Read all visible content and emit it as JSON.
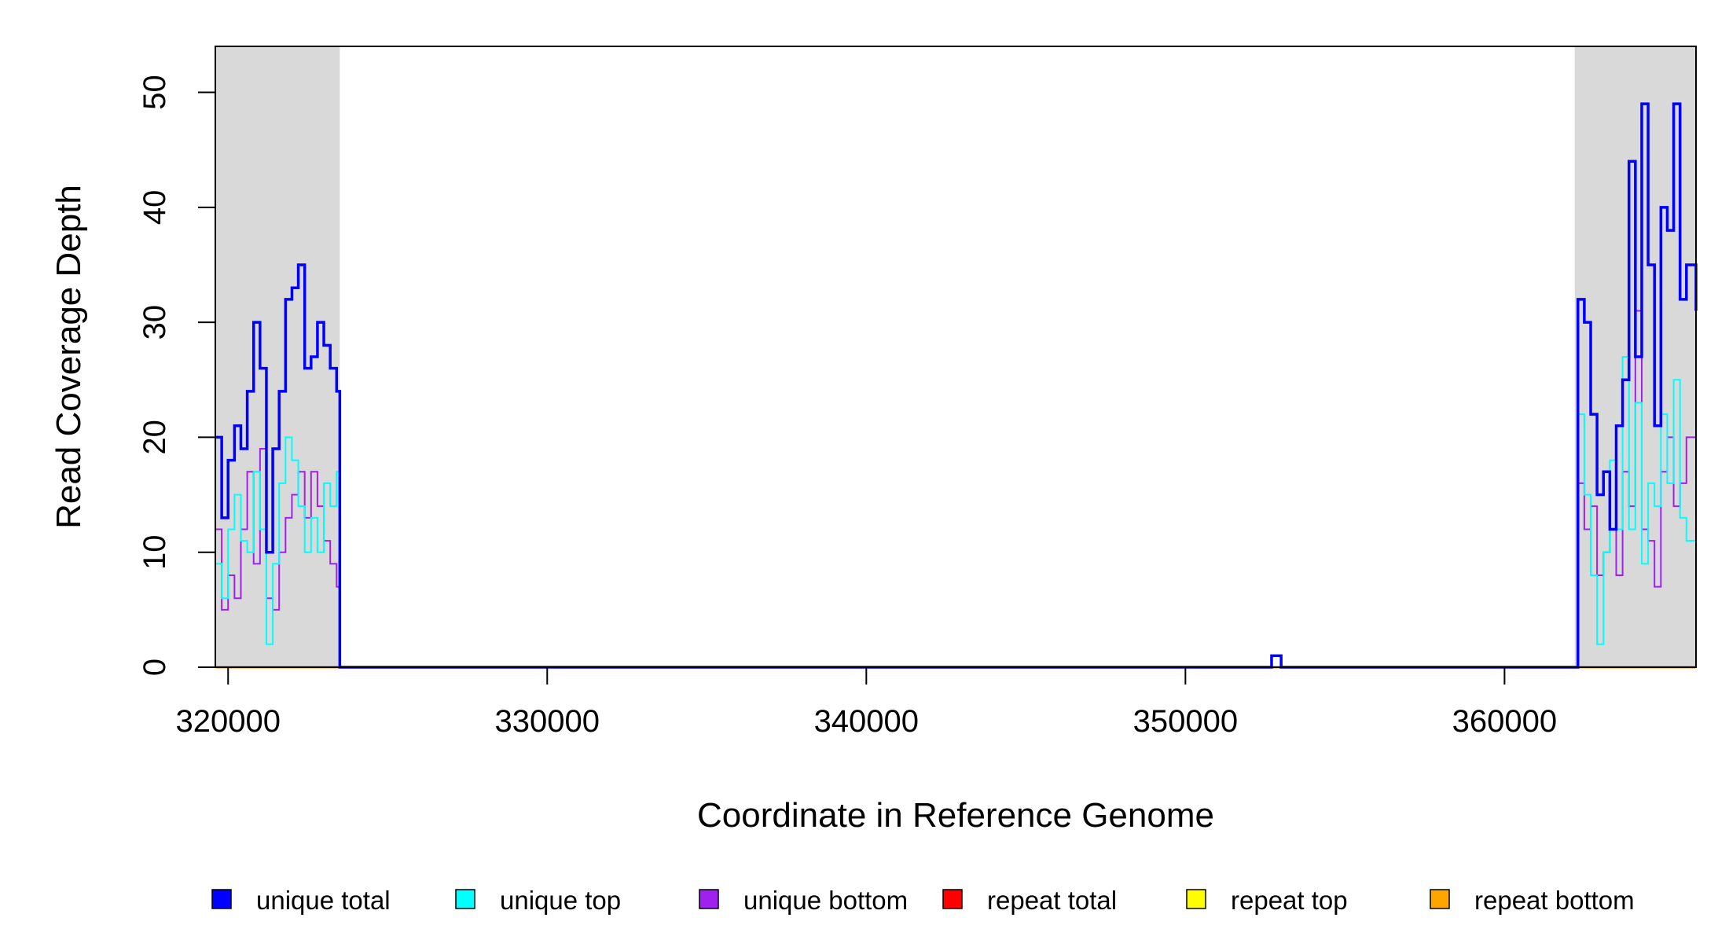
{
  "chart_data": {
    "type": "line",
    "title": "",
    "xlabel": "Coordinate in Reference Genome",
    "ylabel": "Read Coverage Depth",
    "xlim": [
      319600,
      366000
    ],
    "ylim": [
      0,
      54
    ],
    "x_ticks": [
      320000,
      330000,
      340000,
      350000,
      360000
    ],
    "y_ticks": [
      0,
      10,
      20,
      30,
      40,
      50
    ],
    "shaded_regions": [
      {
        "x": [
          319600,
          323500
        ],
        "color": "#d9d9d9"
      },
      {
        "x": [
          362200,
          366000
        ],
        "color": "#d9d9d9"
      }
    ],
    "series": [
      {
        "name": "unique total",
        "color": "#0000ff",
        "x": [
          319600,
          319800,
          320000,
          320200,
          320400,
          320600,
          320800,
          321000,
          321200,
          321400,
          321600,
          321800,
          322000,
          322200,
          322400,
          322600,
          322800,
          323000,
          323200,
          323400,
          323500,
          323600,
          352600,
          352700,
          352900,
          353000,
          362200,
          362300,
          362500,
          362700,
          362900,
          363100,
          363300,
          363500,
          363700,
          363900,
          364100,
          364300,
          364500,
          364700,
          364900,
          365100,
          365300,
          365500,
          365700,
          366000
        ],
        "values": [
          20,
          13,
          18,
          21,
          19,
          24,
          30,
          26,
          10,
          19,
          24,
          32,
          33,
          35,
          26,
          27,
          30,
          28,
          26,
          24,
          0,
          0,
          0,
          1,
          1,
          0,
          0,
          32,
          30,
          22,
          15,
          17,
          12,
          21,
          25,
          44,
          27,
          49,
          35,
          21,
          40,
          38,
          49,
          32,
          35,
          31
        ]
      },
      {
        "name": "unique top",
        "color": "#00ffff",
        "x": [
          319600,
          319800,
          320000,
          320200,
          320400,
          320600,
          320800,
          321000,
          321200,
          321400,
          321600,
          321800,
          322000,
          322200,
          322400,
          322600,
          322800,
          323000,
          323200,
          323400,
          323500,
          362200,
          362300,
          362500,
          362700,
          362900,
          363100,
          363300,
          363500,
          363700,
          363900,
          364100,
          364300,
          364500,
          364700,
          364900,
          365100,
          365300,
          365500,
          365700,
          366000
        ],
        "values": [
          9,
          6,
          12,
          15,
          11,
          10,
          17,
          12,
          2,
          9,
          16,
          20,
          18,
          14,
          10,
          13,
          10,
          16,
          14,
          17,
          0,
          0,
          22,
          15,
          8,
          2,
          10,
          18,
          12,
          27,
          12,
          23,
          9,
          16,
          14,
          22,
          16,
          25,
          13,
          11,
          15
        ]
      },
      {
        "name": "unique bottom",
        "color": "#a020f0",
        "x": [
          319600,
          319800,
          320000,
          320200,
          320400,
          320600,
          320800,
          321000,
          321200,
          321400,
          321600,
          321800,
          322000,
          322200,
          322400,
          322600,
          322800,
          323000,
          323200,
          323400,
          323500,
          362200,
          362300,
          362500,
          362700,
          362900,
          363100,
          363300,
          363500,
          363700,
          363900,
          364100,
          364300,
          364500,
          364700,
          364900,
          365100,
          365300,
          365500,
          365700,
          366000
        ],
        "values": [
          12,
          5,
          8,
          6,
          12,
          17,
          9,
          19,
          6,
          5,
          10,
          13,
          15,
          17,
          13,
          17,
          14,
          11,
          9,
          7,
          0,
          0,
          16,
          12,
          14,
          8,
          10,
          12,
          8,
          17,
          14,
          31,
          12,
          11,
          7,
          17,
          20,
          14,
          16,
          20,
          19
        ]
      },
      {
        "name": "repeat total",
        "color": "#ff0000",
        "x": [
          319600,
          366000
        ],
        "values": [
          0,
          0
        ]
      },
      {
        "name": "repeat top",
        "color": "#ffff00",
        "x": [
          319600,
          366000
        ],
        "values": [
          0,
          0
        ]
      },
      {
        "name": "repeat bottom",
        "color": "#ffa500",
        "x": [
          319600,
          366000
        ],
        "values": [
          0,
          0
        ]
      }
    ],
    "legend": {
      "placement": "bottom",
      "entries": [
        "unique total",
        "unique top",
        "unique bottom",
        "repeat total",
        "repeat top",
        "repeat bottom"
      ]
    },
    "grid": false
  }
}
